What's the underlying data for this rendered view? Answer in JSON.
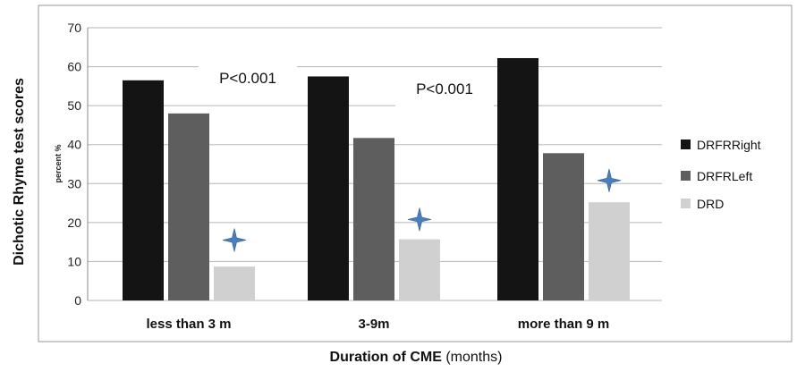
{
  "chart_data": {
    "type": "bar",
    "xlabel": "Duration of CME",
    "xlabel_suffix": "(months)",
    "ylabel": "Dichotic Rhyme test scores",
    "ylabel_inner": "percent %",
    "ylim": [
      0,
      70
    ],
    "yticks": [
      0,
      10,
      20,
      30,
      40,
      50,
      60,
      70
    ],
    "grid": true,
    "legend_position": "right",
    "categories": [
      "less than 3 m",
      "3-9m",
      "more than 9 m"
    ],
    "series": [
      {
        "name": "DRFRRight",
        "values": [
          56.5,
          57.5,
          62.2
        ],
        "color": "#141414"
      },
      {
        "name": "DRFRLeft",
        "values": [
          48.0,
          41.7,
          37.8
        ],
        "color": "#5e5e5e"
      },
      {
        "name": "DRD",
        "values": [
          8.7,
          15.7,
          25.2
        ],
        "color": "#d0d0d0"
      }
    ],
    "annotations": [
      {
        "text": "P<0.001"
      },
      {
        "text": "P<0.001"
      }
    ],
    "significance_markers": [
      {
        "category": "less than 3 m",
        "series": "DRD",
        "y": 15.5
      },
      {
        "category": "3-9m",
        "series": "DRD",
        "y": 20.8
      },
      {
        "category": "more than 9 m",
        "series": "DRD",
        "y": 30.8
      }
    ],
    "colors": {
      "star": "#4a7fb8",
      "grid": "#b5b5b5",
      "frame": "#9a9a9a"
    }
  }
}
